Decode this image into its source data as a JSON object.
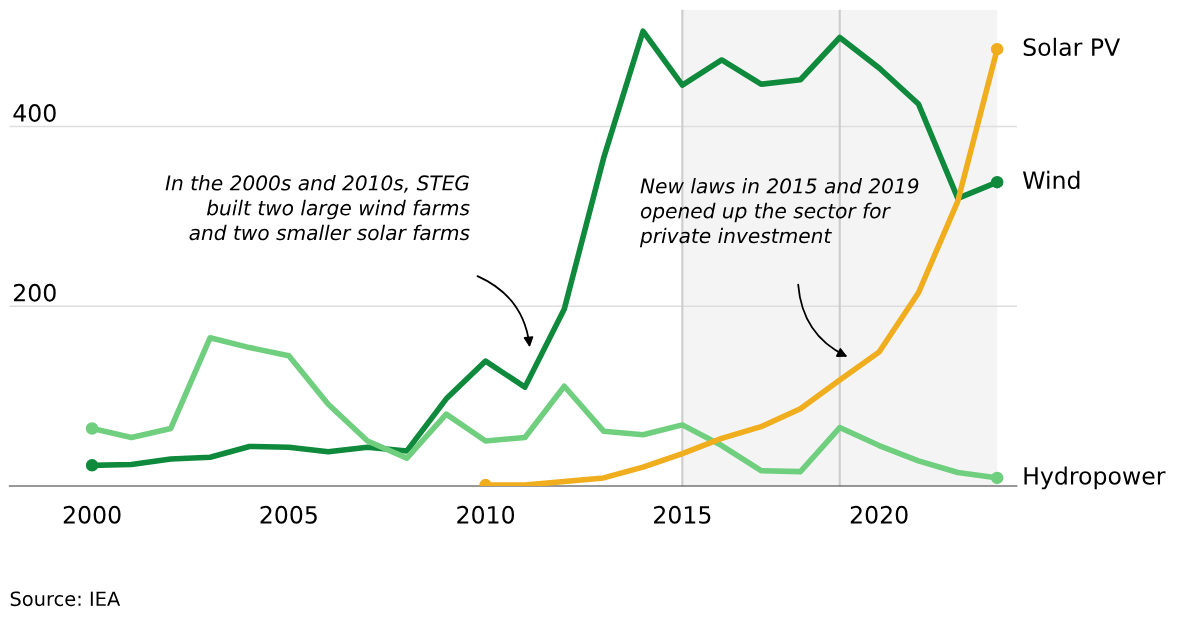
{
  "chart_data": {
    "type": "line",
    "x": [
      2000,
      2001,
      2002,
      2003,
      2004,
      2005,
      2006,
      2007,
      2008,
      2009,
      2010,
      2011,
      2012,
      2013,
      2014,
      2015,
      2016,
      2017,
      2018,
      2019,
      2020,
      2021,
      2022,
      2023
    ],
    "series": [
      {
        "name": "Wind",
        "color": "#0f8a3c",
        "values": [
          23,
          24,
          30,
          32,
          44,
          43,
          38,
          43,
          39,
          97,
          139,
          110,
          197,
          365,
          506,
          446,
          474,
          447,
          452,
          499,
          465,
          425,
          320,
          338
        ]
      },
      {
        "name": "Hydropower",
        "color": "#6fcf7f",
        "values": [
          64,
          54,
          64,
          165,
          154,
          145,
          91,
          50,
          31,
          80,
          50,
          54,
          111,
          61,
          57,
          68,
          45,
          17,
          16,
          65,
          45,
          28,
          15,
          9
        ]
      },
      {
        "name": "Solar PV",
        "color": "#f0ad1e",
        "x": [
          2010,
          2011,
          2012,
          2013,
          2014,
          2015,
          2016,
          2017,
          2018,
          2019,
          2020,
          2021,
          2022,
          2023
        ],
        "values": [
          1,
          1,
          5,
          9,
          21,
          36,
          53,
          66,
          86,
          118,
          149,
          215,
          317,
          486
        ]
      }
    ],
    "xlim": [
      1997.9,
      2023.5
    ],
    "xticks": [
      2000,
      2005,
      2010,
      2015,
      2020
    ],
    "ylim": [
      0,
      530
    ],
    "yticks": [
      200,
      400
    ],
    "grid": "y",
    "legend": false,
    "bands": [
      {
        "axis": "x",
        "from": 2015,
        "to": 2023,
        "color": "#f4f4f4"
      }
    ],
    "ref_lines": [
      {
        "axis": "x",
        "value": 2015,
        "color": "#cccccc"
      },
      {
        "axis": "x",
        "value": 2019,
        "color": "#cccccc"
      }
    ],
    "annotations": [
      "In the 2000s and 2010s, STEG\nbuilt two large wind farms\nand two smaller solar farms",
      "New laws in 2015 and 2019\nopened up the sector for\nprivate investment",
      "Source: IEA"
    ]
  }
}
